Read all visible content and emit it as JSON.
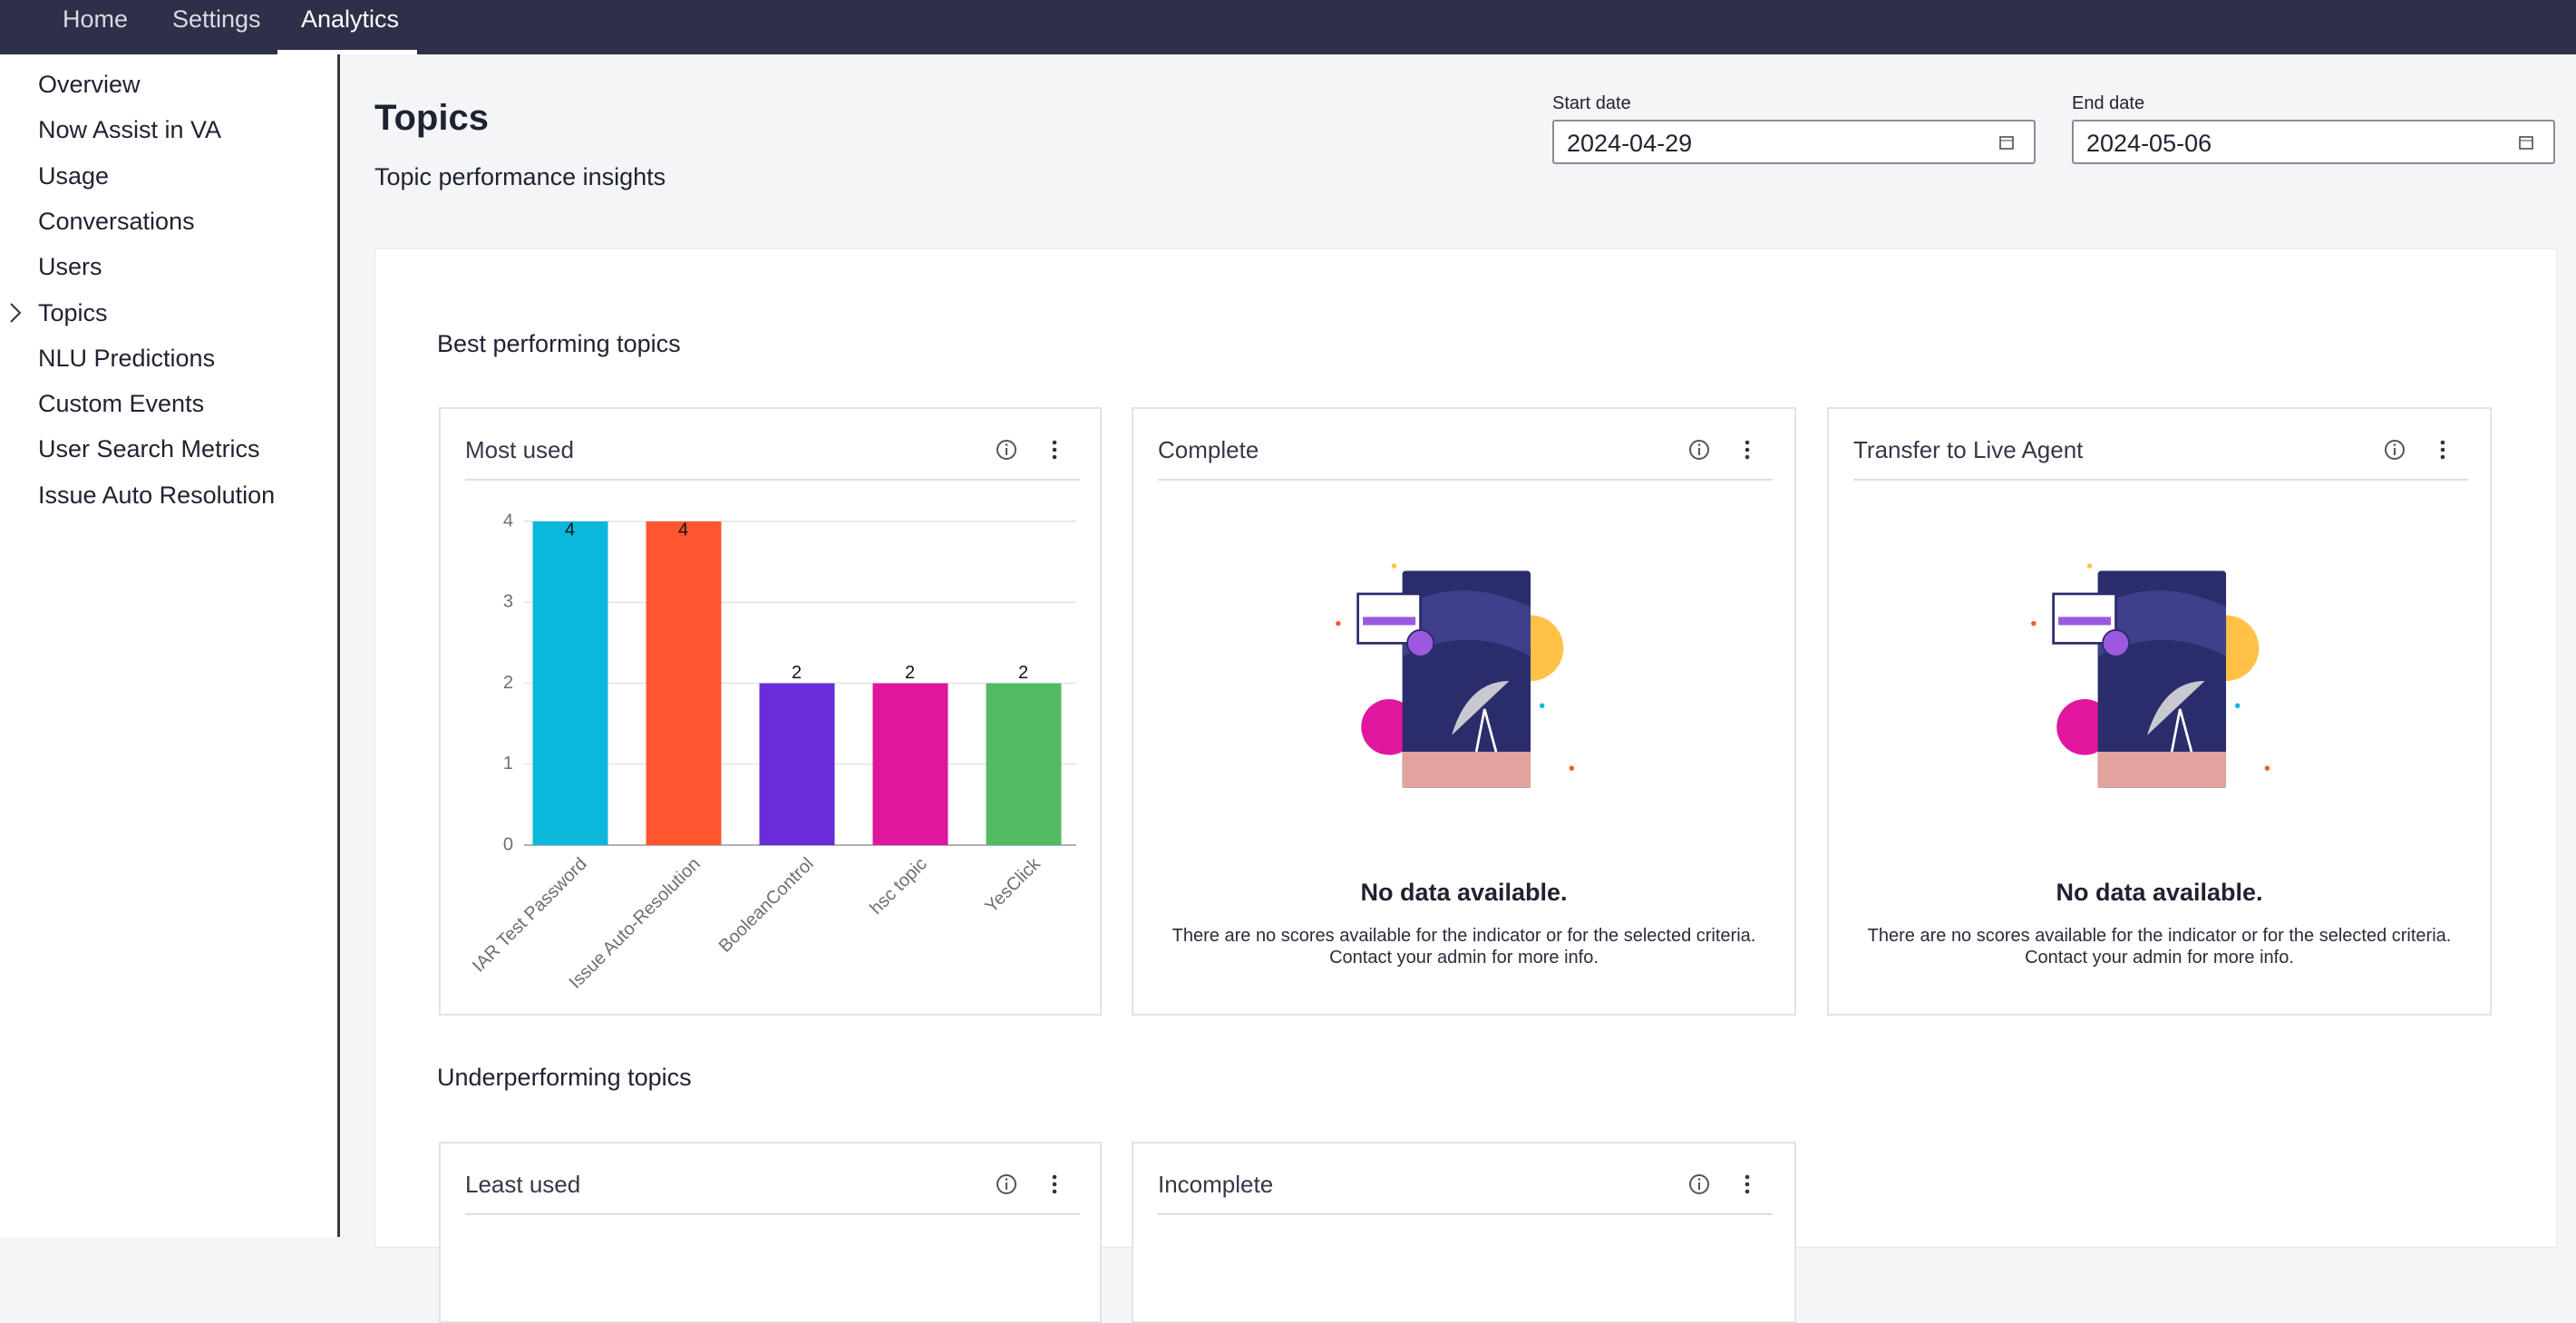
{
  "nav": {
    "tabs": [
      "Home",
      "Settings",
      "Analytics"
    ]
  },
  "sidebar": {
    "items": [
      "Overview",
      "Now Assist in VA",
      "Usage",
      "Conversations",
      "Users",
      "Topics",
      "NLU Predictions",
      "Custom Events",
      "User Search Metrics",
      "Issue Auto Resolution"
    ]
  },
  "header": {
    "title": "Topics",
    "subtitle": "Topic performance insights"
  },
  "filters": {
    "start": {
      "label": "Start date",
      "value": "2024-04-29"
    },
    "end": {
      "label": "End date",
      "value": "2024-05-06"
    }
  },
  "sections": [
    {
      "title": "Best performing topics",
      "cards": [
        {
          "title": "Complete",
          "empty": {
            "title": "No data available.",
            "message": "There are no scores available for the indicator or for the selected criteria.",
            "hint": "Contact your admin for more info."
          }
        },
        {
          "title": "Transfer to Live Agent",
          "empty": {
            "title": "No data available.",
            "message": "There are no scores available for the indicator or for the selected criteria.",
            "hint": "Contact your admin for more info."
          }
        }
      ]
    },
    {
      "title": "Underperforming topics",
      "cards": [
        {
          "title": "Least used"
        },
        {
          "title": "Incomplete"
        }
      ]
    }
  ],
  "chart_data": {
    "type": "bar",
    "title": "Most used",
    "categories": [
      "IAR Test Password",
      "Issue Auto-Resolution",
      "BooleanControl",
      "hsc topic",
      "YesClick"
    ],
    "values": [
      4,
      4,
      2,
      2,
      2
    ],
    "colors": [
      "#0bb8dc",
      "#ff5630",
      "#6a2bd9",
      "#e0179e",
      "#52bb62"
    ],
    "ylim": [
      0,
      4
    ],
    "yticks": [
      0,
      1,
      2,
      3,
      4
    ],
    "grid": true
  }
}
